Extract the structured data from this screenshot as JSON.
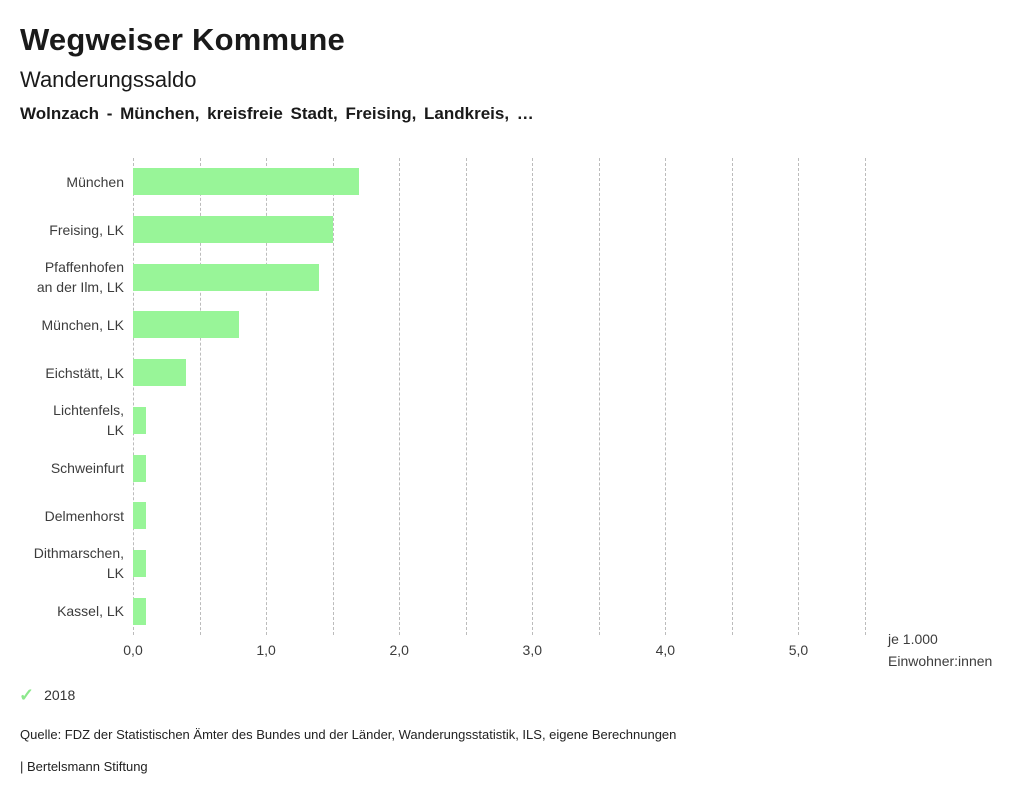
{
  "header": {
    "title": "Wegweiser Kommune",
    "subtitle": "Wanderungssaldo",
    "selection": "Wolnzach - München, kreisfreie Stadt, Freising, Landkreis, …"
  },
  "chart_data": {
    "type": "bar",
    "orientation": "horizontal",
    "title": "Wanderungssaldo",
    "xlabel": "je 1.000 Einwohner:innen",
    "xlim": [
      0,
      5.5
    ],
    "grid_interval": 0.5,
    "grid_style": "dashed-vertical",
    "bar_color": "#98f598",
    "categories": [
      "München",
      "Freising, LK",
      "Pfaffenhofen an der Ilm, LK",
      "München, LK",
      "Eichstätt, LK",
      "Lichtenfels, LK",
      "Schweinfurt",
      "Delmenhorst",
      "Dithmarschen, LK",
      "Kassel, LK"
    ],
    "values": [
      1.7,
      1.5,
      1.4,
      0.8,
      0.4,
      0.1,
      0.1,
      0.1,
      0.1,
      0.1
    ],
    "rows": [
      {
        "name": "München",
        "lines": [
          "München"
        ],
        "value": 1.7
      },
      {
        "name": "Freising, LK",
        "lines": [
          "Freising, LK"
        ],
        "value": 1.5
      },
      {
        "name": "Pfaffenhofen an der Ilm, LK",
        "lines": [
          "Pfaffenhofen",
          "an der Ilm, LK"
        ],
        "value": 1.4
      },
      {
        "name": "München, LK",
        "lines": [
          "München, LK"
        ],
        "value": 0.8
      },
      {
        "name": "Eichstätt, LK",
        "lines": [
          "Eichstätt, LK"
        ],
        "value": 0.4
      },
      {
        "name": "Lichtenfels, LK",
        "lines": [
          "Lichtenfels,",
          "LK"
        ],
        "value": 0.1
      },
      {
        "name": "Schweinfurt",
        "lines": [
          "Schweinfurt"
        ],
        "value": 0.1
      },
      {
        "name": "Delmenhorst",
        "lines": [
          "Delmenhorst"
        ],
        "value": 0.1
      },
      {
        "name": "Dithmarschen, LK",
        "lines": [
          "Dithmarschen,",
          "LK"
        ],
        "value": 0.1
      },
      {
        "name": "Kassel, LK",
        "lines": [
          "Kassel, LK"
        ],
        "value": 0.1
      }
    ],
    "x_ticks": [
      {
        "value": 0,
        "label": "0,0"
      },
      {
        "value": 1,
        "label": "1,0"
      },
      {
        "value": 2,
        "label": "2,0"
      },
      {
        "value": 3,
        "label": "3,0"
      },
      {
        "value": 4,
        "label": "4,0"
      },
      {
        "value": 5,
        "label": "5,0"
      }
    ]
  },
  "axis_note": {
    "line1": "je 1.000",
    "line2": "Einwohner:innen"
  },
  "legend": {
    "check_glyph": "✓",
    "check_color": "#8ce88c",
    "year": "2018"
  },
  "footer": {
    "source": "Quelle: FDZ der Statistischen Ämter des Bundes und der Länder, Wanderungsstatistik, ILS, eigene Berechnungen",
    "attribution": "| Bertelsmann Stiftung"
  }
}
